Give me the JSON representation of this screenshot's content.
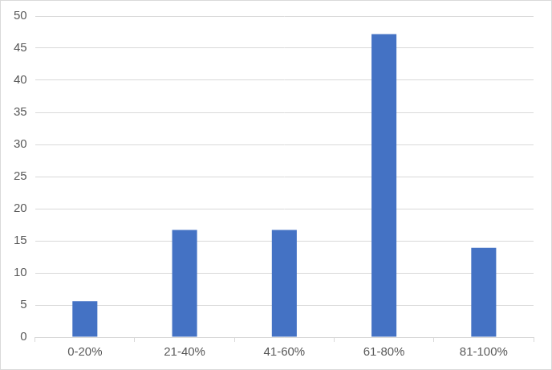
{
  "chart_data": {
    "type": "bar",
    "categories": [
      "0-20%",
      "21-40%",
      "41-60%",
      "61-80%",
      "81-100%"
    ],
    "values": [
      5.6,
      16.7,
      16.7,
      47.2,
      13.9
    ],
    "color": "#4472c4",
    "ylim": [
      0,
      50
    ],
    "yticks": [
      0,
      5,
      10,
      15,
      20,
      25,
      30,
      35,
      40,
      45,
      50
    ],
    "grid": true
  }
}
